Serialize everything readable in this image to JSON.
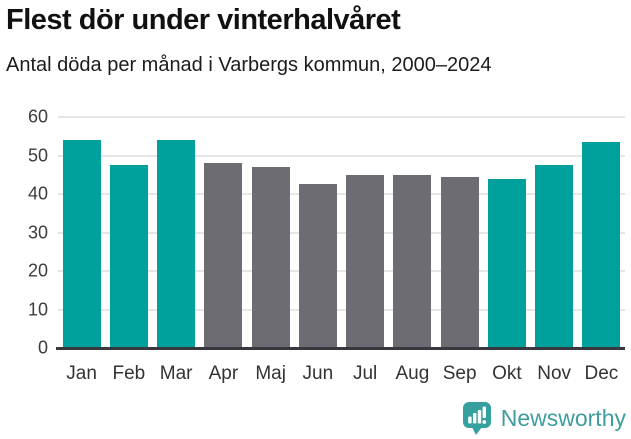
{
  "header": {
    "title": "Flest dör under vinterhalvåret",
    "subtitle": "Antal döda per månad i Varbergs kommun, 2000–2024"
  },
  "chart_data": {
    "type": "bar",
    "title": "Flest dör under vinterhalvåret",
    "subtitle": "Antal döda per månad i Varbergs kommun, 2000–2024",
    "categories": [
      "Jan",
      "Feb",
      "Mar",
      "Apr",
      "Maj",
      "Jun",
      "Jul",
      "Aug",
      "Sep",
      "Okt",
      "Nov",
      "Dec"
    ],
    "values": [
      54,
      47.5,
      54,
      48,
      47,
      42.5,
      45,
      45,
      44.5,
      44,
      47.5,
      53.5
    ],
    "bar_color_keys": [
      "highlight",
      "highlight",
      "highlight",
      "default",
      "default",
      "default",
      "default",
      "default",
      "default",
      "highlight",
      "highlight",
      "highlight"
    ],
    "palette": {
      "highlight": "#00a19c",
      "default": "#6c6c72"
    },
    "xlabel": "",
    "ylabel": "",
    "ylim": [
      0,
      60
    ],
    "yticks": [
      0,
      10,
      20,
      30,
      40,
      50,
      60
    ],
    "grid": true,
    "gridline_color": "#e6e6e6",
    "axis_line_color": "#38383e",
    "legend": "none"
  },
  "branding": {
    "logo_text": "Newsworthy",
    "logo_color": "#3f9d9d",
    "logo_icon": "speech-bubble-bar-chart-icon",
    "logo_icon_color": "#35a09e"
  }
}
